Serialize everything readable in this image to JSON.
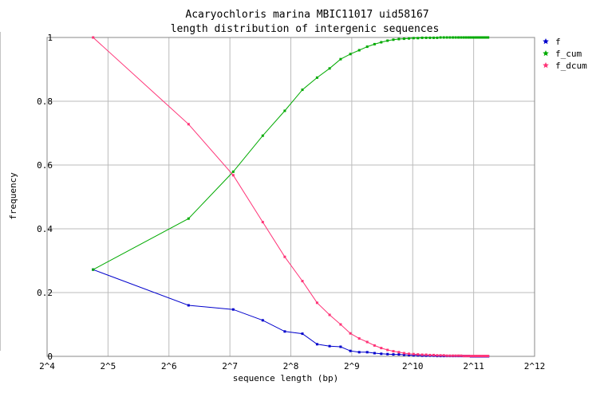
{
  "chart_data": {
    "type": "line",
    "title": "Acaryochloris marina MBIC11017 uid58167",
    "subtitle": "length distribution of intergenic sequences",
    "xlabel": "sequence length (bp)",
    "ylabel": "frequency",
    "x_scale": "log2",
    "xlim": [
      16,
      4096
    ],
    "ylim": [
      0,
      1
    ],
    "x_ticks": [
      "2^4",
      "2^5",
      "2^6",
      "2^7",
      "2^8",
      "2^9",
      "2^10",
      "2^11",
      "2^12"
    ],
    "y_ticks": [
      "0",
      "0.2",
      "0.4",
      "0.6",
      "0.8",
      "1"
    ],
    "grid": true,
    "legend_position": "top-right",
    "x": [
      27,
      80,
      133,
      186,
      239,
      292,
      345,
      398,
      451,
      504,
      557,
      610,
      663,
      716,
      769,
      822,
      875,
      928,
      981,
      1034,
      1087,
      1140,
      1193,
      1246,
      1299,
      1352,
      1405,
      1458,
      1511,
      1564,
      1617,
      1670,
      1723,
      1776,
      1829,
      1882,
      1935,
      1988,
      2041,
      2094,
      2147,
      2200,
      2253,
      2306,
      2359,
      2412
    ],
    "series": [
      {
        "name": "f",
        "color": "#0000cc",
        "values": [
          0.272,
          0.16,
          0.147,
          0.113,
          0.078,
          0.071,
          0.038,
          0.032,
          0.03,
          0.017,
          0.013,
          0.013,
          0.01,
          0.008,
          0.007,
          0.006,
          0.006,
          0.005,
          0.004,
          0.003,
          0.003,
          0.002,
          0.002,
          0.002,
          0.002,
          0.001,
          0.001,
          0.001,
          0.001,
          0.001,
          0.001,
          0.001,
          0.001,
          0.001,
          0.001,
          0.001,
          0.001,
          0.0,
          0.0,
          0.0,
          0.0,
          0.0,
          0.0,
          0.0,
          0.0,
          0.0
        ]
      },
      {
        "name": "f_cum",
        "color": "#00aa00",
        "values": [
          0.272,
          0.432,
          0.579,
          0.692,
          0.77,
          0.836,
          0.874,
          0.903,
          0.932,
          0.948,
          0.96,
          0.971,
          0.979,
          0.985,
          0.99,
          0.993,
          0.995,
          0.996,
          0.997,
          0.998,
          0.998,
          0.999,
          0.999,
          0.999,
          0.999,
          0.999,
          1.0,
          1.0,
          1.0,
          1.0,
          1.0,
          1.0,
          1.0,
          1.0,
          1.0,
          1.0,
          1.0,
          1.0,
          1.0,
          1.0,
          1.0,
          1.0,
          1.0,
          1.0,
          1.0,
          1.0
        ]
      },
      {
        "name": "f_dcum",
        "color": "#ff3377",
        "values": [
          1.0,
          0.728,
          0.568,
          0.421,
          0.312,
          0.236,
          0.168,
          0.13,
          0.1,
          0.072,
          0.056,
          0.045,
          0.034,
          0.026,
          0.02,
          0.016,
          0.013,
          0.01,
          0.008,
          0.007,
          0.006,
          0.005,
          0.005,
          0.004,
          0.004,
          0.003,
          0.003,
          0.003,
          0.002,
          0.002,
          0.002,
          0.002,
          0.002,
          0.002,
          0.001,
          0.001,
          0.001,
          0.001,
          0.001,
          0.001,
          0.001,
          0.001,
          0.001,
          0.001,
          0.001,
          0.001
        ]
      }
    ]
  }
}
